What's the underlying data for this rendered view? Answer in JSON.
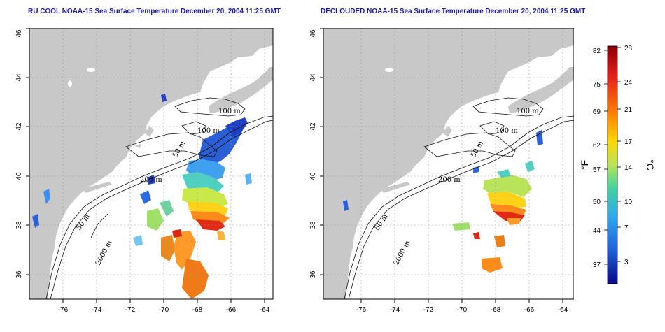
{
  "titles": {
    "left": "RU COOL NOAA-15 Sea Surface Temperature December 20, 2004 11:25 GMT",
    "right": "DECLOUDED NOAA-15 Sea Surface Temperature December 20, 2004 11:25 GMT"
  },
  "map": {
    "lon_ticks": [
      "-76",
      "-74",
      "-72",
      "-70",
      "-68",
      "-66",
      "-64"
    ],
    "lat_ticks": [
      "36",
      "38",
      "40",
      "42",
      "44",
      "46"
    ],
    "lon_range": [
      -77.5,
      -63
    ],
    "lat_range": [
      35,
      46
    ],
    "land_color": "#c8c8c8",
    "grid": "dotted"
  },
  "isobaths": {
    "left": [
      "100 m",
      "100 m",
      "50 m",
      "200 m",
      "50 m",
      "2000 m"
    ],
    "right": [
      "100 m",
      "100 m",
      "50 m",
      "200 m",
      "50 m",
      "2000 m"
    ]
  },
  "colorbar": {
    "fahrenheit_ticks": [
      "82",
      "75",
      "69",
      "62",
      "57",
      "50",
      "44",
      "37"
    ],
    "celsius_ticks": [
      "28",
      "24",
      "21",
      "17",
      "14",
      "10",
      "7",
      "3"
    ],
    "fahrenheit_unit": "°F",
    "celsius_unit": "°C",
    "gradient_colors": [
      "#8b0000",
      "#e41a1c",
      "#ff7f00",
      "#ffd700",
      "#b8e35a",
      "#3fd1a0",
      "#2fa8f0",
      "#1f5fd8",
      "#08088a"
    ]
  }
}
